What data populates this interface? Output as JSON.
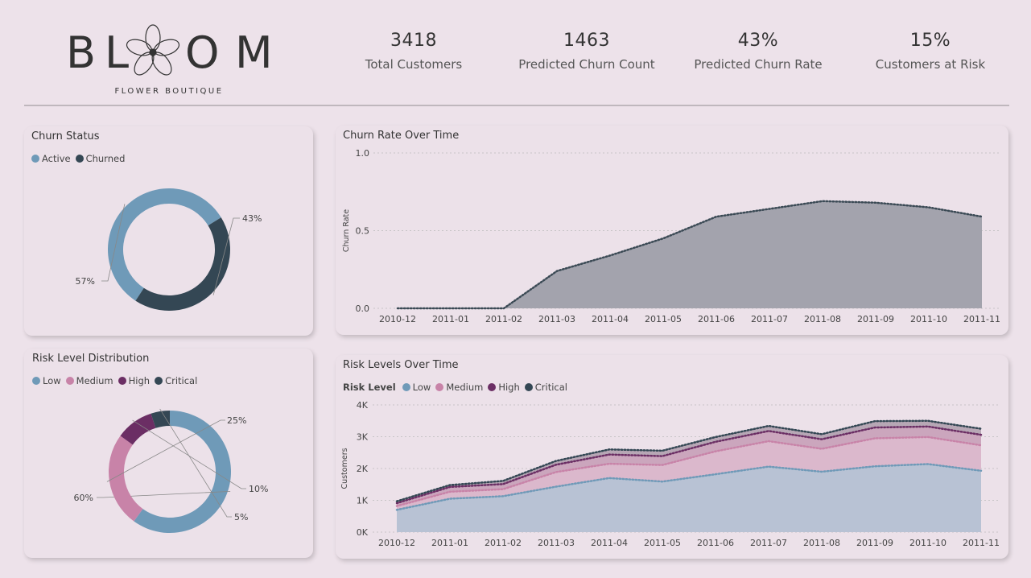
{
  "brand": {
    "logo_text": "BLOOM",
    "subtitle": "FLOWER BOUTIQUE"
  },
  "kpis": [
    {
      "value": "3418",
      "label": "Total Customers"
    },
    {
      "value": "1463",
      "label": "Predicted Churn Count"
    },
    {
      "value": "43%",
      "label": "Predicted Churn Rate"
    },
    {
      "value": "15%",
      "label": "Customers at Risk"
    }
  ],
  "colors": {
    "active": "#6f9ab8",
    "churned": "#344754",
    "low": "#6f9ab8",
    "medium": "#c883a8",
    "high": "#6b2e64",
    "critical": "#344754",
    "area_grey": "#a3a3ad"
  },
  "churn_status": {
    "title": "Churn Status",
    "legend": [
      "Active",
      "Churned"
    ],
    "labels": [
      "57%",
      "43%"
    ]
  },
  "risk_dist": {
    "title": "Risk Level Distribution",
    "legend": [
      "Low",
      "Medium",
      "High",
      "Critical"
    ],
    "labels": [
      "60%",
      "25%",
      "10%",
      "5%"
    ]
  },
  "churn_time": {
    "title": "Churn Rate Over Time",
    "ylabel": "Churn Rate"
  },
  "risk_time": {
    "title": "Risk Levels Over Time",
    "legend_title": "Risk Level",
    "legend": [
      "Low",
      "Medium",
      "High",
      "Critical"
    ],
    "ylabel": "Customers"
  },
  "chart_data": [
    {
      "type": "pie",
      "title": "Churn Status",
      "categories": [
        "Active",
        "Churned"
      ],
      "values": [
        57,
        43
      ],
      "legend_position": "top-left"
    },
    {
      "type": "pie",
      "title": "Risk Level Distribution",
      "categories": [
        "Low",
        "Medium",
        "High",
        "Critical"
      ],
      "values": [
        60,
        25,
        10,
        5
      ],
      "legend_position": "top-left"
    },
    {
      "type": "area",
      "title": "Churn Rate Over Time",
      "x": [
        "2010-12",
        "2011-01",
        "2011-02",
        "2011-03",
        "2011-04",
        "2011-05",
        "2011-06",
        "2011-07",
        "2011-08",
        "2011-09",
        "2011-10",
        "2011-11"
      ],
      "series": [
        {
          "name": "Churn Rate",
          "values": [
            0.0,
            0.0,
            0.0,
            0.24,
            0.34,
            0.45,
            0.59,
            0.64,
            0.69,
            0.68,
            0.65,
            0.59
          ]
        }
      ],
      "ylabel": "Churn Rate",
      "ylim": [
        0,
        1.0
      ],
      "yticks": [
        "0.0",
        "0.5",
        "1.0"
      ],
      "grid": true
    },
    {
      "type": "area",
      "title": "Risk Levels Over Time",
      "x": [
        "2010-12",
        "2011-01",
        "2011-02",
        "2011-03",
        "2011-04",
        "2011-05",
        "2011-06",
        "2011-07",
        "2011-08",
        "2011-09",
        "2011-10",
        "2011-11"
      ],
      "stacked": true,
      "series": [
        {
          "name": "Low",
          "values": [
            700,
            1050,
            1130,
            1430,
            1700,
            1590,
            1820,
            2060,
            1900,
            2070,
            2140,
            1930
          ]
        },
        {
          "name": "Medium",
          "values": [
            120,
            220,
            220,
            460,
            450,
            520,
            720,
            800,
            720,
            880,
            850,
            800
          ]
        },
        {
          "name": "High",
          "values": [
            90,
            150,
            160,
            230,
            290,
            280,
            300,
            320,
            300,
            340,
            330,
            330
          ]
        },
        {
          "name": "Critical",
          "values": [
            60,
            60,
            100,
            120,
            160,
            170,
            150,
            160,
            160,
            200,
            180,
            190
          ]
        }
      ],
      "ylabel": "Customers",
      "ylim": [
        0,
        4000
      ],
      "yticks": [
        "0K",
        "1K",
        "2K",
        "3K",
        "4K"
      ],
      "legend_title": "Risk Level",
      "legend_position": "top-left",
      "grid": true
    }
  ]
}
